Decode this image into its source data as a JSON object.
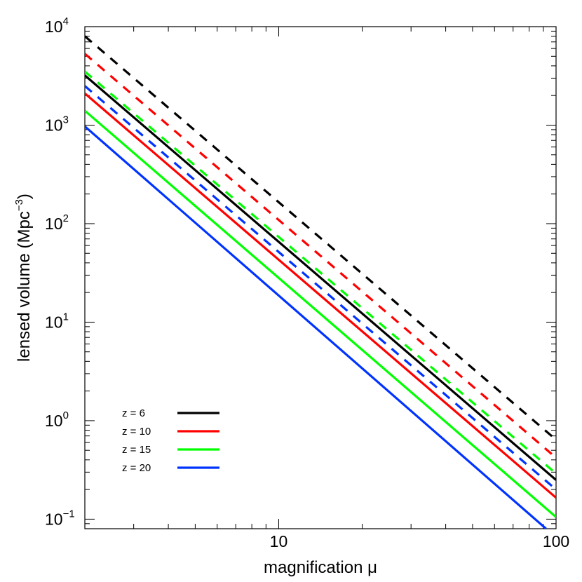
{
  "chart_data": {
    "type": "line",
    "xlabel": "magnification μ",
    "ylabel": "lensed volume (Mpc",
    "ylabel_sup": "−3",
    "ylabel_suffix": ")",
    "xscale": "log",
    "yscale": "log",
    "xlim": [
      2,
      100
    ],
    "ylim": [
      0.08,
      10000
    ],
    "x_ticks": [
      {
        "value": 10,
        "label": "10"
      },
      {
        "value": 100,
        "label": "100"
      }
    ],
    "y_ticks": [
      {
        "value": 0.1,
        "base": "10",
        "exp": "−1"
      },
      {
        "value": 1,
        "base": "10",
        "exp": "0"
      },
      {
        "value": 10,
        "base": "10",
        "exp": "1"
      },
      {
        "value": 100,
        "base": "10",
        "exp": "2"
      },
      {
        "value": 1000,
        "base": "10",
        "exp": "3"
      },
      {
        "value": 10000,
        "base": "10",
        "exp": "4"
      }
    ],
    "legend_position": "bottom-left",
    "series": [
      {
        "name": "z = 6",
        "color": "#000000",
        "style": "solid",
        "x": [
          2,
          100
        ],
        "y": [
          3200,
          0.25
        ]
      },
      {
        "name": "z = 10",
        "color": "#ff0000",
        "style": "solid",
        "x": [
          2,
          100
        ],
        "y": [
          2100,
          0.165
        ]
      },
      {
        "name": "z = 15",
        "color": "#00ff00",
        "style": "solid",
        "x": [
          2,
          100
        ],
        "y": [
          1400,
          0.105
        ]
      },
      {
        "name": "z = 20",
        "color": "#0033ff",
        "style": "solid",
        "x": [
          2,
          92
        ],
        "y": [
          970,
          0.08
        ]
      },
      {
        "name": "",
        "color": "#000000",
        "style": "dashed",
        "x": [
          2,
          100
        ],
        "y": [
          8000,
          0.64
        ]
      },
      {
        "name": "",
        "color": "#ff0000",
        "style": "dashed",
        "x": [
          2,
          100
        ],
        "y": [
          5300,
          0.42
        ]
      },
      {
        "name": "",
        "color": "#00ff00",
        "style": "dashed",
        "x": [
          2,
          100
        ],
        "y": [
          3500,
          0.29
        ]
      },
      {
        "name": "",
        "color": "#0033ff",
        "style": "dashed",
        "x": [
          2,
          100
        ],
        "y": [
          2500,
          0.2
        ]
      }
    ]
  }
}
